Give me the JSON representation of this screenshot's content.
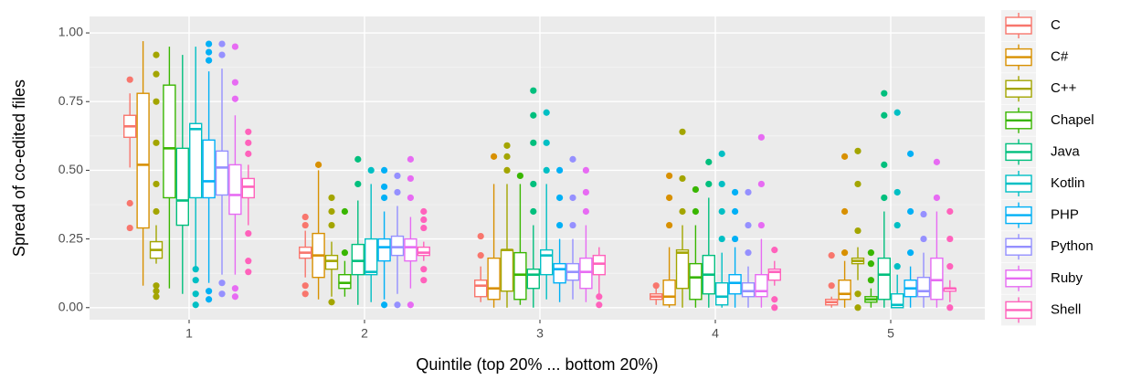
{
  "chart_data": {
    "type": "boxplot",
    "x_label": "Quintile (top 20% ... bottom 20%)",
    "y_label": "Spread of co-edited files",
    "categories": [
      "1",
      "2",
      "3",
      "4",
      "5"
    ],
    "ylim": [
      -0.044,
      1.06
    ],
    "yticks": [
      {
        "value": 0,
        "label": "0.00"
      },
      {
        "value": 0.25,
        "label": "0.25"
      },
      {
        "value": 0.5,
        "label": "0.50"
      },
      {
        "value": 0.75,
        "label": "0.75"
      },
      {
        "value": 1,
        "label": "1.00"
      }
    ],
    "grid": true,
    "legend": "right",
    "series": [
      {
        "name": "C",
        "color": "#F8766D",
        "min": [
          0.51,
          0.11,
          0.02,
          0.01,
          0.0
        ],
        "q1": [
          0.62,
          0.18,
          0.04,
          0.03,
          0.01
        ],
        "median": [
          0.66,
          0.2,
          0.08,
          0.04,
          0.02
        ],
        "q3": [
          0.7,
          0.22,
          0.1,
          0.05,
          0.03
        ],
        "max": [
          0.78,
          0.28,
          0.15,
          0.07,
          0.04
        ],
        "outliers": [
          [
            0.29,
            0.38,
            0.83
          ],
          [
            0.05,
            0.08,
            0.3,
            0.33
          ],
          [
            0.19,
            0.26
          ],
          [
            0.08
          ],
          [
            0.08,
            0.19
          ]
        ]
      },
      {
        "name": "C#",
        "color": "#D89000",
        "min": [
          0.08,
          0.03,
          0.0,
          0.0,
          0.0
        ],
        "q1": [
          0.29,
          0.11,
          0.03,
          0.01,
          0.03
        ],
        "median": [
          0.52,
          0.19,
          0.07,
          0.04,
          0.05
        ],
        "q3": [
          0.78,
          0.27,
          0.18,
          0.1,
          0.1
        ],
        "max": [
          0.97,
          0.5,
          0.45,
          0.22,
          0.17
        ],
        "outliers": [
          [],
          [
            0.52
          ],
          [
            0.55
          ],
          [
            0.3,
            0.4,
            0.48
          ],
          [
            0.2,
            0.35,
            0.55
          ]
        ]
      },
      {
        "name": "C++",
        "color": "#A3A500",
        "min": [
          0.16,
          0.04,
          0.0,
          0.0,
          0.1
        ],
        "q1": [
          0.18,
          0.14,
          0.06,
          0.07,
          0.16
        ],
        "median": [
          0.21,
          0.17,
          0.21,
          0.2,
          0.17
        ],
        "q3": [
          0.24,
          0.19,
          0.21,
          0.21,
          0.18
        ],
        "max": [
          0.3,
          0.24,
          0.45,
          0.3,
          0.22
        ],
        "outliers": [
          [
            0.04,
            0.06,
            0.08,
            0.35,
            0.45,
            0.6,
            0.75,
            0.85,
            0.92
          ],
          [
            0.02,
            0.3,
            0.35,
            0.4
          ],
          [
            0.5,
            0.55,
            0.59
          ],
          [
            0.35,
            0.47,
            0.64
          ],
          [
            0.0,
            0.05,
            0.28,
            0.45,
            0.57
          ]
        ]
      },
      {
        "name": "Chapel",
        "color": "#39B600",
        "min": [
          0.07,
          0.04,
          0.01,
          0.0,
          0.0
        ],
        "q1": [
          0.4,
          0.07,
          0.03,
          0.03,
          0.02
        ],
        "median": [
          0.58,
          0.09,
          0.12,
          0.11,
          0.03
        ],
        "q3": [
          0.81,
          0.12,
          0.2,
          0.16,
          0.04
        ],
        "max": [
          0.95,
          0.17,
          0.45,
          0.3,
          0.07
        ],
        "outliers": [
          [],
          [
            0.2,
            0.35
          ],
          [
            0.48
          ],
          [
            0.35,
            0.43
          ],
          [
            0.1,
            0.16,
            0.2
          ]
        ]
      },
      {
        "name": "Java",
        "color": "#00BF7D",
        "min": [
          0.05,
          0.01,
          0.0,
          0.0,
          0.0
        ],
        "q1": [
          0.3,
          0.12,
          0.07,
          0.05,
          0.03
        ],
        "median": [
          0.39,
          0.17,
          0.12,
          0.12,
          0.12
        ],
        "q3": [
          0.58,
          0.23,
          0.14,
          0.19,
          0.18
        ],
        "max": [
          0.92,
          0.39,
          0.3,
          0.4,
          0.35
        ],
        "outliers": [
          [],
          [
            0.45,
            0.54
          ],
          [
            0.35,
            0.45,
            0.6,
            0.7,
            0.79
          ],
          [
            0.45,
            0.53
          ],
          [
            0.4,
            0.52,
            0.7,
            0.78
          ]
        ]
      },
      {
        "name": "Kotlin",
        "color": "#00BFC4",
        "min": [
          0.15,
          0.02,
          0.03,
          0.0,
          0.0
        ],
        "q1": [
          0.4,
          0.12,
          0.12,
          0.01,
          0.0
        ],
        "median": [
          0.65,
          0.13,
          0.19,
          0.04,
          0.01
        ],
        "q3": [
          0.67,
          0.25,
          0.21,
          0.09,
          0.05
        ],
        "max": [
          0.95,
          0.45,
          0.45,
          0.2,
          0.12
        ],
        "outliers": [
          [
            0.01,
            0.05,
            0.1,
            0.14
          ],
          [
            0.5
          ],
          [
            0.5,
            0.6,
            0.71
          ],
          [
            0.25,
            0.35,
            0.45,
            0.56
          ],
          [
            0.15,
            0.3,
            0.42,
            0.71
          ]
        ]
      },
      {
        "name": "PHP",
        "color": "#00B0F6",
        "min": [
          0.09,
          0.03,
          0.02,
          0.0,
          0.0
        ],
        "q1": [
          0.4,
          0.17,
          0.09,
          0.05,
          0.04
        ],
        "median": [
          0.46,
          0.22,
          0.14,
          0.09,
          0.07
        ],
        "q3": [
          0.61,
          0.25,
          0.16,
          0.12,
          0.1
        ],
        "max": [
          0.86,
          0.35,
          0.25,
          0.22,
          0.15
        ],
        "outliers": [
          [
            0.03,
            0.06,
            0.9,
            0.93,
            0.96
          ],
          [
            0.01,
            0.4,
            0.44,
            0.5
          ],
          [
            0.3,
            0.4,
            0.5
          ],
          [
            0.25,
            0.35,
            0.42
          ],
          [
            0.2,
            0.35,
            0.56
          ]
        ]
      },
      {
        "name": "Python",
        "color": "#9590FF",
        "min": [
          0.12,
          0.05,
          0.03,
          0.0,
          0.0
        ],
        "q1": [
          0.41,
          0.19,
          0.1,
          0.04,
          0.04
        ],
        "median": [
          0.51,
          0.22,
          0.13,
          0.06,
          0.06
        ],
        "q3": [
          0.57,
          0.26,
          0.16,
          0.09,
          0.11
        ],
        "max": [
          0.87,
          0.37,
          0.25,
          0.15,
          0.2
        ],
        "outliers": [
          [
            0.05,
            0.09,
            0.92,
            0.96
          ],
          [
            0.01,
            0.42,
            0.48
          ],
          [
            0.3,
            0.4,
            0.54
          ],
          [
            0.2,
            0.3,
            0.42
          ],
          [
            0.25,
            0.34
          ]
        ]
      },
      {
        "name": "Ruby",
        "color": "#E76BF3",
        "min": [
          0.12,
          0.07,
          0.02,
          0.0,
          0.0
        ],
        "q1": [
          0.34,
          0.17,
          0.07,
          0.04,
          0.03
        ],
        "median": [
          0.41,
          0.22,
          0.13,
          0.06,
          0.1
        ],
        "q3": [
          0.52,
          0.25,
          0.18,
          0.12,
          0.18
        ],
        "max": [
          0.7,
          0.33,
          0.3,
          0.25,
          0.35
        ],
        "outliers": [
          [
            0.04,
            0.07,
            0.76,
            0.82,
            0.95
          ],
          [
            0.01,
            0.4,
            0.47,
            0.54
          ],
          [
            0.35,
            0.42,
            0.5
          ],
          [
            0.3,
            0.45,
            0.62
          ],
          [
            0.4,
            0.53
          ]
        ]
      },
      {
        "name": "Shell",
        "color": "#FF62BC",
        "min": [
          0.3,
          0.17,
          0.05,
          0.08,
          0.02
        ],
        "q1": [
          0.4,
          0.19,
          0.12,
          0.1,
          0.06
        ],
        "median": [
          0.44,
          0.2,
          0.16,
          0.13,
          0.07
        ],
        "q3": [
          0.47,
          0.22,
          0.19,
          0.14,
          0.07
        ],
        "max": [
          0.52,
          0.24,
          0.22,
          0.17,
          0.1
        ],
        "outliers": [
          [
            0.13,
            0.17,
            0.27,
            0.56,
            0.6,
            0.64
          ],
          [
            0.1,
            0.14,
            0.29,
            0.32,
            0.35
          ],
          [
            0.01,
            0.04
          ],
          [
            0.0,
            0.03,
            0.21
          ],
          [
            0.0,
            0.15,
            0.25,
            0.35
          ]
        ]
      }
    ]
  }
}
